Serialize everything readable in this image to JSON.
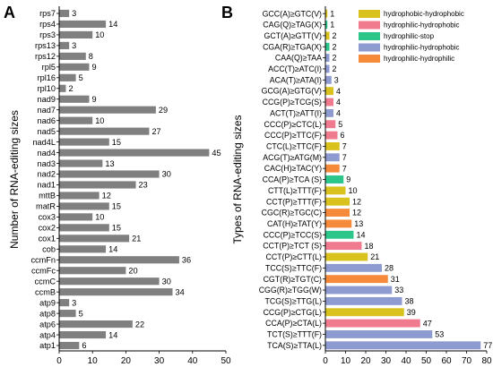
{
  "chart_data": [
    {
      "panel_label": "A",
      "type": "bar",
      "orientation": "horizontal",
      "ylabel": "Number of RNA-editing sizes",
      "xlim": [
        0,
        50
      ],
      "x_ticks": [
        "0",
        "10",
        "20",
        "30",
        "40",
        "50"
      ],
      "bar_color": "#808080",
      "categories": [
        "rps7",
        "rps4",
        "rps3",
        "rps13",
        "rps12",
        "rpl5",
        "rpl16",
        "rpl10",
        "nad9",
        "nad7",
        "nad6",
        "nad5",
        "nad4L",
        "nad4",
        "nad3",
        "nad2",
        "nad1",
        "mttB",
        "matR",
        "cox3",
        "cox2",
        "cox1",
        "cob",
        "ccmFn",
        "ccmFc",
        "ccmC",
        "ccmB",
        "atp9",
        "atp8",
        "atp6",
        "atp4",
        "atp1"
      ],
      "values": [
        3,
        14,
        10,
        3,
        8,
        9,
        5,
        2,
        9,
        29,
        10,
        27,
        15,
        45,
        13,
        30,
        23,
        12,
        15,
        10,
        15,
        21,
        14,
        36,
        20,
        30,
        34,
        3,
        5,
        22,
        14,
        6
      ],
      "value_labels": [
        "3",
        "14",
        "10",
        "3",
        "8",
        "9",
        "5",
        "2",
        "9",
        "29",
        "10",
        "27",
        "15",
        "45",
        "13",
        "30",
        "23",
        "12",
        "15",
        "10",
        "15",
        "21",
        "14",
        "36",
        "20",
        "30",
        "34",
        "3",
        "5",
        "22",
        "14",
        "6"
      ]
    },
    {
      "panel_label": "B",
      "type": "bar",
      "orientation": "horizontal",
      "ylabel": "Types of RNA-editing sizes",
      "xlim": [
        0,
        80
      ],
      "x_ticks": [
        "0",
        "10",
        "20",
        "30",
        "40",
        "50",
        "60",
        "70",
        "80"
      ],
      "legend_position": "top-right",
      "legend": [
        {
          "label": "hydrophobic-hydrophobic",
          "color": "#D9C21D"
        },
        {
          "label": "hydrophilic-hydrophobic",
          "color": "#F07B8E"
        },
        {
          "label": "hydrophilic-stop",
          "color": "#2CC68B"
        },
        {
          "label": "hydrophilic-hydrophobic",
          "color": "#8E9BD0"
        },
        {
          "label": "hydrophilic-hydrophilic",
          "color": "#F48A3A"
        }
      ],
      "categories": [
        "GCC(A)≥GTC(V)",
        "CAG(Q)≥TAG(X)",
        "GCT(A)≥GTT(V)",
        "CGA(R)≥TGA(X)",
        "CAA(Q)≥TAA",
        "ACC(T)≥ATC(I)",
        "ACA(T)≥ATA(I)",
        "GCG(A)≥GTG(V)",
        "CCG(P)≥TCG(S)",
        "ACT(T)≥ATT(I)",
        "CCC(P)≥CTC(L)",
        "CCC(P)≥TTC(F)",
        "CTC(L)≥TTC(F)",
        "ACG(T)≥ATG(M)",
        "CAC(H)≥TAC(Y)",
        "CCA(P)≥TCA (S)",
        "CTT(L)≥TTT(F)",
        "CCT(P)≥TTT(F)",
        "CGC(R)≥TGC(C)",
        "CAT(H)≥TAT(Y)",
        "CCC(P)≥TCC(S)",
        "CCT(P)≥TCT (S)",
        "CCT(P)≥CTT(L)",
        "TCC(S)≥TTC(F)",
        "CGT(R)≥TGT(C)",
        "CGG(R)≥TGG(W)",
        "TCG(S)≥TTG(L)",
        "CCG(P)≥CTG(L)",
        "CCA(P)≥CTA(L)",
        "TCT(S)≥TTT(F)",
        "TCA(S)≥TTA(L)"
      ],
      "values": [
        1,
        1,
        2,
        2,
        2,
        2,
        3,
        4,
        4,
        4,
        5,
        6,
        7,
        7,
        7,
        9,
        10,
        12,
        12,
        13,
        14,
        18,
        21,
        28,
        31,
        33,
        38,
        39,
        47,
        53,
        77
      ],
      "value_labels": [
        "1",
        "1",
        "2",
        "2",
        "2",
        "2",
        "3",
        "4",
        "4",
        "4",
        "5",
        "6",
        "7",
        "7",
        "7",
        "9",
        "10",
        "12",
        "12",
        "13",
        "14",
        "18",
        "21",
        "28",
        "31",
        "33",
        "38",
        "39",
        "47",
        "53",
        "77"
      ],
      "bar_colors": [
        "#D9C21D",
        "#2CC68B",
        "#D9C21D",
        "#2CC68B",
        "#8E9BD0",
        "#8E9BD0",
        "#8E9BD0",
        "#D9C21D",
        "#F07B8E",
        "#8E9BD0",
        "#F07B8E",
        "#F07B8E",
        "#D9C21D",
        "#8E9BD0",
        "#F48A3A",
        "#2CC68B",
        "#D9C21D",
        "#D9C21D",
        "#F48A3A",
        "#F48A3A",
        "#2CC68B",
        "#F07B8E",
        "#D9C21D",
        "#8E9BD0",
        "#F48A3A",
        "#8E9BD0",
        "#8E9BD0",
        "#D9C21D",
        "#F07B8E",
        "#8E9BD0",
        "#8E9BD0"
      ]
    }
  ]
}
